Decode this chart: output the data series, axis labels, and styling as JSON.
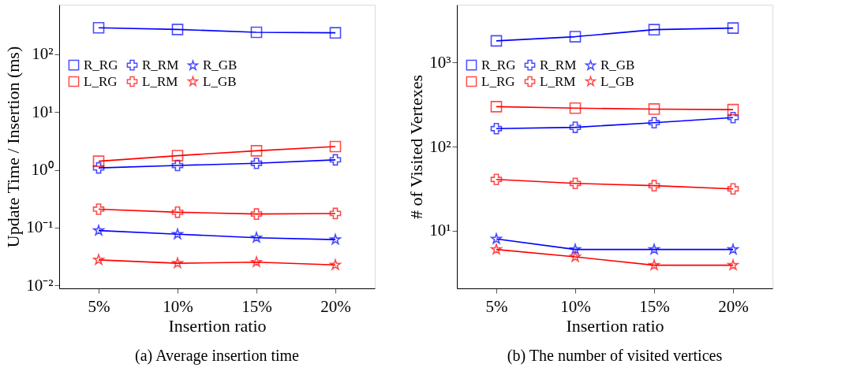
{
  "chart_data": [
    {
      "type": "line",
      "title": "(a) Average insertion time",
      "xlabel": "Insertion ratio",
      "ylabel": "Update Time / Insertion (ms)",
      "categories": [
        "5%",
        "10%",
        "15%",
        "20%"
      ],
      "log": true,
      "grid": false,
      "legend": "top",
      "ylim": [
        0.0089,
        720
      ],
      "yticks": [
        {
          "value": 0.01,
          "label": "10⁻²"
        },
        {
          "value": 0.1,
          "label": "10⁻¹"
        },
        {
          "value": 1,
          "label": "10⁰"
        },
        {
          "value": 10,
          "label": "10¹"
        },
        {
          "value": 100,
          "label": "10²"
        }
      ],
      "series": [
        {
          "name": "R_RG",
          "color": "#0000ff",
          "marker": "square",
          "values": [
            287,
            269,
            240,
            235
          ]
        },
        {
          "name": "R_RM",
          "color": "#0000ff",
          "marker": "cross",
          "values": [
            1.08,
            1.19,
            1.3,
            1.49
          ]
        },
        {
          "name": "R_GB",
          "color": "#0000ff",
          "marker": "star",
          "values": [
            0.089,
            0.077,
            0.067,
            0.062
          ]
        },
        {
          "name": "L_RG",
          "color": "#ff0000",
          "marker": "square",
          "values": [
            1.41,
            1.76,
            2.14,
            2.53
          ]
        },
        {
          "name": "L_RM",
          "color": "#ff0000",
          "marker": "cross",
          "values": [
            0.209,
            0.185,
            0.172,
            0.176
          ]
        },
        {
          "name": "L_GB",
          "color": "#ff0000",
          "marker": "star",
          "values": [
            0.0277,
            0.0242,
            0.0253,
            0.0226
          ]
        }
      ]
    },
    {
      "type": "line",
      "title": "(b) The number of visited vertices",
      "xlabel": "Insertion ratio",
      "ylabel": "# of Visited Vertexes",
      "categories": [
        "5%",
        "10%",
        "15%",
        "20%"
      ],
      "log": true,
      "grid": false,
      "legend": "top",
      "ylim": [
        2.07,
        4870
      ],
      "yticks": [
        {
          "value": 10,
          "label": "10¹"
        },
        {
          "value": 100,
          "label": "10²"
        },
        {
          "value": 1000,
          "label": "10³"
        }
      ],
      "series": [
        {
          "name": "R_RG",
          "color": "#0000ff",
          "marker": "square",
          "values": [
            1810,
            2030,
            2460,
            2570
          ]
        },
        {
          "name": "R_RM",
          "color": "#0000ff",
          "marker": "cross",
          "values": [
            164,
            170,
            193,
            222
          ]
        },
        {
          "name": "R_GB",
          "color": "#0000ff",
          "marker": "star",
          "values": [
            8,
            6,
            6,
            6
          ]
        },
        {
          "name": "L_RG",
          "color": "#ff0000",
          "marker": "square",
          "values": [
            299,
            287,
            280,
            276
          ]
        },
        {
          "name": "L_RM",
          "color": "#ff0000",
          "marker": "cross",
          "values": [
            40.8,
            36.6,
            34.4,
            31.5
          ]
        },
        {
          "name": "L_GB",
          "color": "#ff0000",
          "marker": "star",
          "values": [
            6,
            4.9,
            3.9,
            3.9
          ]
        }
      ]
    }
  ]
}
